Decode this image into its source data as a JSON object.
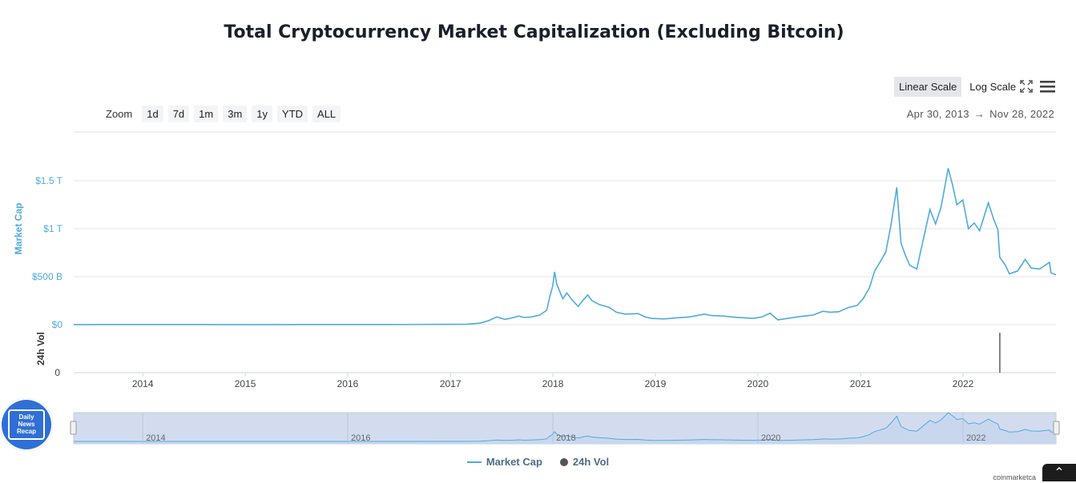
{
  "title": "Total Cryptocurrency Market Capitalization (Excluding Bitcoin)",
  "scale_buttons": [
    "Linear Scale",
    "Log Scale"
  ],
  "zoom": {
    "label": "Zoom",
    "buttons": [
      "1d",
      "7d",
      "1m",
      "3m",
      "1y",
      "YTD",
      "ALL"
    ]
  },
  "range": {
    "from": "Apr 30, 2013",
    "arrow": "→",
    "to": "Nov 28, 2022"
  },
  "badge": {
    "lines": [
      "Daily",
      "News",
      "Recap"
    ]
  },
  "legend": {
    "series1": "Market Cap",
    "series2": "24h Vol"
  },
  "credit": "coinmarketca",
  "colors": {
    "line": "#4eaae0",
    "axis_label": "#4eaae0",
    "navigator_fill": "#d3dcee",
    "volume": "#333333"
  },
  "chart_data": {
    "type": "line",
    "x_ticks": [
      "2014",
      "2015",
      "2016",
      "2017",
      "2018",
      "2019",
      "2020",
      "2021",
      "2022"
    ],
    "y_ticks": [
      "$0",
      "$500 B",
      "$1 T",
      "$1.5 T"
    ],
    "ylabel": "Market Cap",
    "ylim": [
      0,
      1700
    ],
    "volume_axis": {
      "label": "24h Vol",
      "ticks": [
        "0"
      ]
    },
    "navigator_ticks": [
      "2014",
      "2016",
      "2018",
      "2020",
      "2022"
    ],
    "series": [
      {
        "name": "Market Cap",
        "unit": "billion USD",
        "points": [
          [
            "2013-04-30",
            0.5
          ],
          [
            "2014-01-01",
            1.5
          ],
          [
            "2015-01-01",
            1
          ],
          [
            "2016-01-01",
            1.5
          ],
          [
            "2016-06-01",
            2
          ],
          [
            "2017-01-01",
            3
          ],
          [
            "2017-03-01",
            5
          ],
          [
            "2017-04-15",
            15
          ],
          [
            "2017-05-15",
            40
          ],
          [
            "2017-06-15",
            80
          ],
          [
            "2017-07-15",
            55
          ],
          [
            "2017-08-15",
            75
          ],
          [
            "2017-09-01",
            90
          ],
          [
            "2017-09-20",
            75
          ],
          [
            "2017-10-15",
            80
          ],
          [
            "2017-11-15",
            100
          ],
          [
            "2017-12-10",
            150
          ],
          [
            "2017-12-20",
            280
          ],
          [
            "2017-12-31",
            400
          ],
          [
            "2018-01-07",
            550
          ],
          [
            "2018-01-15",
            420
          ],
          [
            "2018-02-05",
            270
          ],
          [
            "2018-02-20",
            330
          ],
          [
            "2018-03-10",
            260
          ],
          [
            "2018-04-01",
            190
          ],
          [
            "2018-04-20",
            260
          ],
          [
            "2018-05-05",
            310
          ],
          [
            "2018-05-20",
            250
          ],
          [
            "2018-06-15",
            210
          ],
          [
            "2018-07-20",
            180
          ],
          [
            "2018-08-15",
            130
          ],
          [
            "2018-09-15",
            110
          ],
          [
            "2018-11-01",
            115
          ],
          [
            "2018-11-25",
            80
          ],
          [
            "2018-12-20",
            65
          ],
          [
            "2019-02-01",
            60
          ],
          [
            "2019-03-15",
            70
          ],
          [
            "2019-05-01",
            80
          ],
          [
            "2019-06-25",
            110
          ],
          [
            "2019-07-20",
            95
          ],
          [
            "2019-09-01",
            90
          ],
          [
            "2019-10-01",
            80
          ],
          [
            "2019-12-15",
            65
          ],
          [
            "2020-01-15",
            80
          ],
          [
            "2020-02-14",
            120
          ],
          [
            "2020-03-12",
            50
          ],
          [
            "2020-04-15",
            65
          ],
          [
            "2020-06-01",
            85
          ],
          [
            "2020-07-15",
            100
          ],
          [
            "2020-08-20",
            140
          ],
          [
            "2020-09-15",
            130
          ],
          [
            "2020-10-15",
            135
          ],
          [
            "2020-11-20",
            180
          ],
          [
            "2020-12-20",
            200
          ],
          [
            "2021-01-10",
            270
          ],
          [
            "2021-02-01",
            380
          ],
          [
            "2021-02-20",
            560
          ],
          [
            "2021-03-15",
            670
          ],
          [
            "2021-04-01",
            760
          ],
          [
            "2021-04-20",
            1050
          ],
          [
            "2021-05-10",
            1430
          ],
          [
            "2021-05-25",
            850
          ],
          [
            "2021-06-10",
            720
          ],
          [
            "2021-06-25",
            620
          ],
          [
            "2021-07-20",
            580
          ],
          [
            "2021-08-15",
            920
          ],
          [
            "2021-09-05",
            1200
          ],
          [
            "2021-09-25",
            1050
          ],
          [
            "2021-10-15",
            1230
          ],
          [
            "2021-11-09",
            1630
          ],
          [
            "2021-11-25",
            1450
          ],
          [
            "2021-12-10",
            1250
          ],
          [
            "2021-12-31",
            1300
          ],
          [
            "2022-01-20",
            1000
          ],
          [
            "2022-02-10",
            1060
          ],
          [
            "2022-03-01",
            980
          ],
          [
            "2022-04-01",
            1270
          ],
          [
            "2022-04-20",
            1100
          ],
          [
            "2022-05-05",
            990
          ],
          [
            "2022-05-12",
            700
          ],
          [
            "2022-06-01",
            620
          ],
          [
            "2022-06-15",
            530
          ],
          [
            "2022-07-15",
            560
          ],
          [
            "2022-08-10",
            680
          ],
          [
            "2022-09-01",
            590
          ],
          [
            "2022-10-01",
            580
          ],
          [
            "2022-11-05",
            650
          ],
          [
            "2022-11-10",
            540
          ],
          [
            "2022-11-28",
            520
          ]
        ]
      },
      {
        "name": "24h Vol",
        "points": [
          [
            "2022-05-12",
            1
          ]
        ]
      }
    ]
  }
}
